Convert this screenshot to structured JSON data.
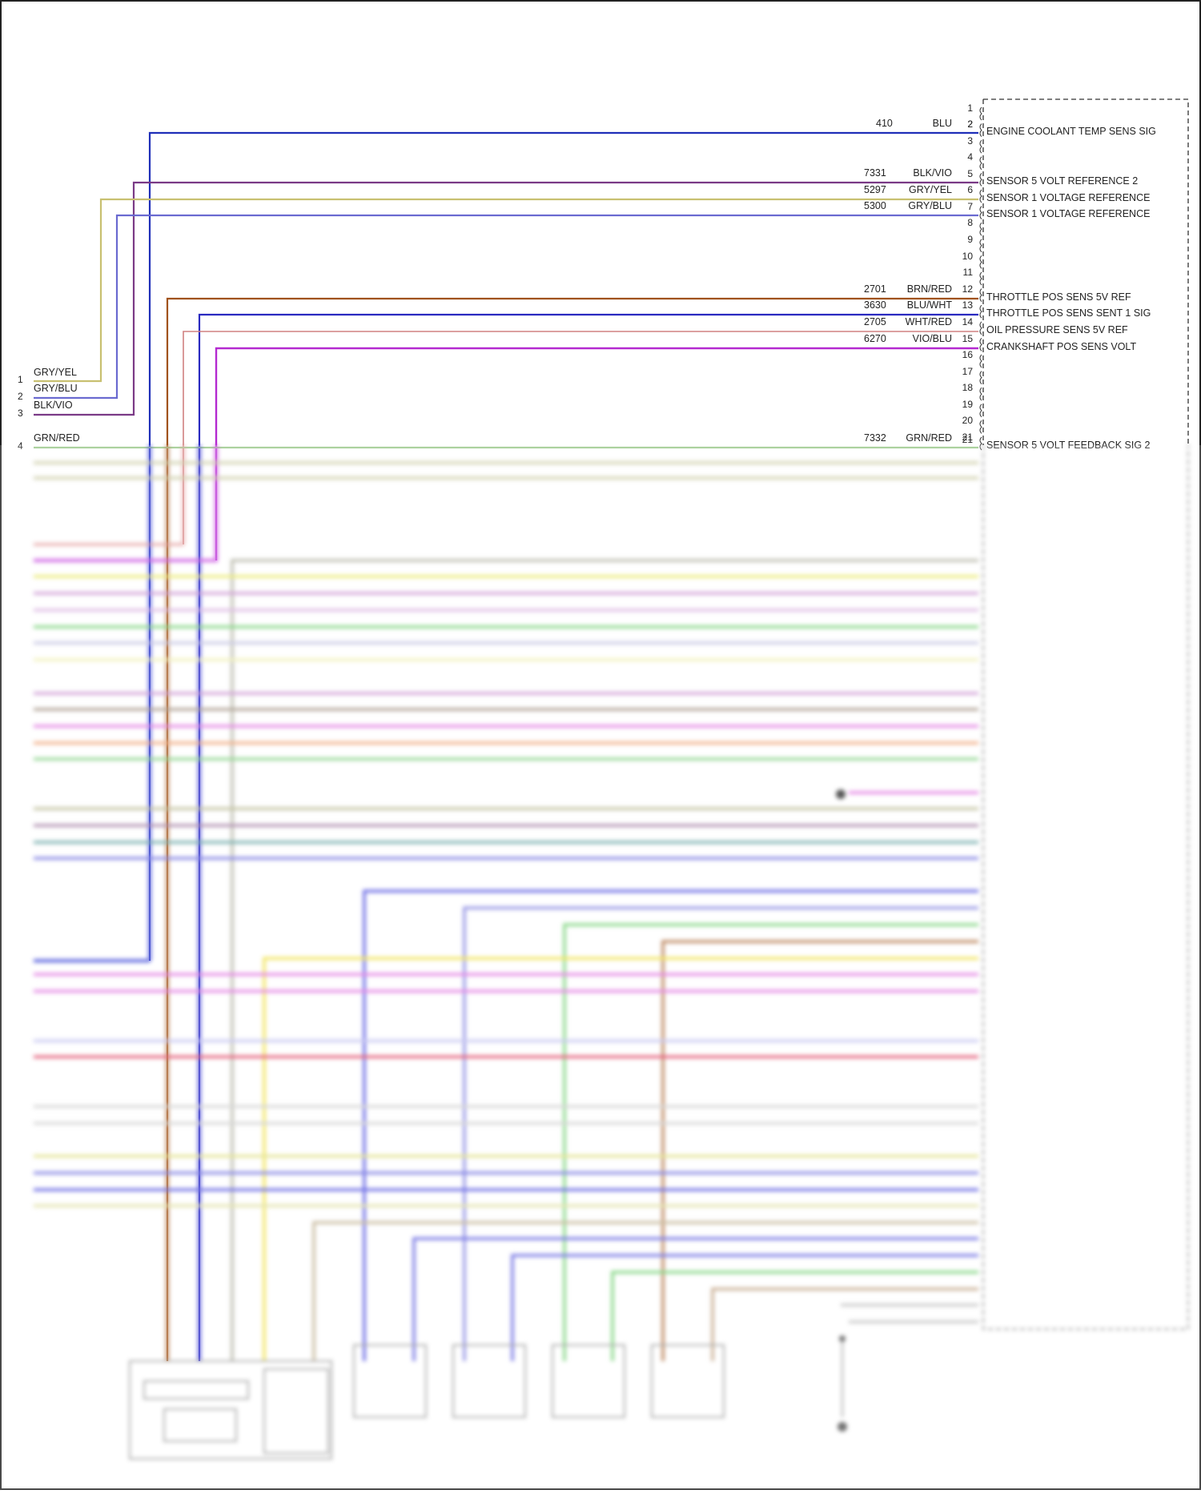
{
  "connector": {
    "pins_listed": [
      "1",
      "2",
      "3",
      "4",
      "5",
      "6",
      "7",
      "8",
      "9",
      "10",
      "11",
      "12",
      "13",
      "14",
      "15",
      "16",
      "17",
      "18",
      "19",
      "20",
      "21"
    ],
    "wires": [
      {
        "pin": "2",
        "circuit": "410",
        "color_name": "BLU",
        "function": "ENGINE COOLANT TEMP SENS SIG",
        "hex": "#1f2fb8"
      },
      {
        "pin": "5",
        "circuit": "7331",
        "color_name": "BLK/VIO",
        "function": "SENSOR 5 VOLT REFERENCE 2",
        "hex": "#7a3a86"
      },
      {
        "pin": "6",
        "circuit": "5297",
        "color_name": "GRY/YEL",
        "function": "SENSOR 1 VOLTAGE REFERENCE",
        "hex": "#c8c070"
      },
      {
        "pin": "7",
        "circuit": "5300",
        "color_name": "GRY/BLU",
        "function": "SENSOR 1 VOLTAGE REFERENCE",
        "hex": "#6a6ad0"
      },
      {
        "pin": "12",
        "circuit": "2701",
        "color_name": "BRN/RED",
        "function": "THROTTLE POS SENS 5V REF",
        "hex": "#a0521a"
      },
      {
        "pin": "13",
        "circuit": "3630",
        "color_name": "BLU/WHT",
        "function": "THROTTLE POS SENS SENT 1 SIG",
        "hex": "#2a2ac0"
      },
      {
        "pin": "14",
        "circuit": "2705",
        "color_name": "WHT/RED",
        "function": "OIL PRESSURE SENS 5V REF",
        "hex": "#d08080"
      },
      {
        "pin": "15",
        "circuit": "6270",
        "color_name": "VIO/BLU",
        "function": "CRANKSHAFT POS SENS VOLT",
        "hex": "#b42ad0"
      },
      {
        "pin": "21",
        "circuit": "7332",
        "color_name": "GRN/RED",
        "function": "SENSOR 5 VOLT FEEDBACK SIG 2",
        "hex": "#9ac88a"
      }
    ]
  },
  "left_connector": {
    "pins": [
      {
        "pin": "1",
        "color_name": "GRY/YEL"
      },
      {
        "pin": "2",
        "color_name": "GRY/BLU"
      },
      {
        "pin": "3",
        "color_name": "BLK/VIO"
      },
      {
        "pin": "4",
        "color_name": "GRN/RED"
      }
    ]
  }
}
